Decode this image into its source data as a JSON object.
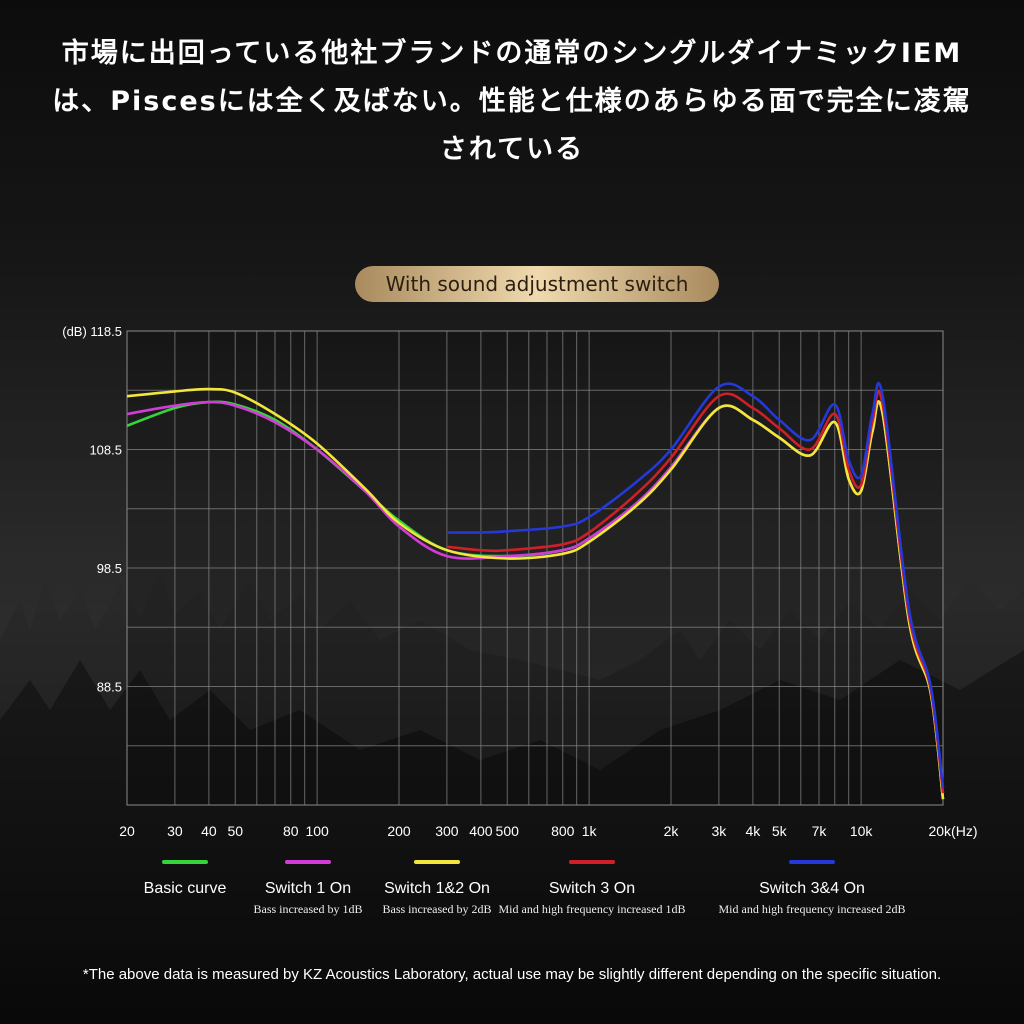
{
  "headline": "市場に出回っている他社ブランドの通常のシングルダイナミックIEMは、Piscesには全く及ばない。性能と仕様のあらゆる面で完全に凌駕されている",
  "badge": "With sound adjustment switch",
  "footnote": "*The above data is measured by KZ Acoustics Laboratory, actual use may be slightly different depending on the specific situation.",
  "legend": [
    {
      "name": "Basic curve",
      "note": "",
      "color": "#35d43a"
    },
    {
      "name": "Switch 1 On",
      "note": "Bass increased by 1dB",
      "color": "#d23cd6"
    },
    {
      "name": "Switch 1&2 On",
      "note": "Bass increased by 2dB",
      "color": "#f2e63a"
    },
    {
      "name": "Switch 3 On",
      "note": "Mid and high frequency increased 1dB",
      "color": "#d11f2a"
    },
    {
      "name": "Switch 3&4 On",
      "note": "Mid and high frequency increased 2dB",
      "color": "#2538d8"
    }
  ],
  "chart_data": {
    "type": "line",
    "title": "",
    "xlabel": "(Hz)",
    "ylabel": "(dB)",
    "x_scale": "log",
    "xlim": [
      20,
      20000
    ],
    "ylim": [
      78.5,
      118.5
    ],
    "yticks": [
      118.5,
      108.5,
      98.5,
      88.5
    ],
    "xticks": [
      {
        "v": 20,
        "label": "20"
      },
      {
        "v": 30,
        "label": "30"
      },
      {
        "v": 40,
        "label": "40"
      },
      {
        "v": 50,
        "label": "50"
      },
      {
        "v": 80,
        "label": "80"
      },
      {
        "v": 100,
        "label": "100"
      },
      {
        "v": 200,
        "label": "200"
      },
      {
        "v": 300,
        "label": "300"
      },
      {
        "v": 400,
        "label": "400"
      },
      {
        "v": 500,
        "label": "500"
      },
      {
        "v": 800,
        "label": "800"
      },
      {
        "v": 1000,
        "label": "1k"
      },
      {
        "v": 2000,
        "label": "2k"
      },
      {
        "v": 3000,
        "label": "3k"
      },
      {
        "v": 4000,
        "label": "4k"
      },
      {
        "v": 5000,
        "label": "5k"
      },
      {
        "v": 7000,
        "label": "7k"
      },
      {
        "v": 10000,
        "label": "10k"
      },
      {
        "v": 20000,
        "label": "20k"
      }
    ],
    "grid": true,
    "series": [
      {
        "name": "Basic curve",
        "color": "#35d43a",
        "x": [
          20,
          30,
          40,
          50,
          70,
          100,
          150,
          200,
          300,
          500,
          800,
          1000,
          1500,
          2000,
          3000,
          4000,
          5000,
          6500,
          8000,
          9000,
          10000,
          11000,
          12000,
          15000,
          18000,
          20000
        ],
        "y": [
          110.5,
          112,
          112.5,
          112.3,
          111,
          108.5,
          105,
          102.5,
          100,
          99.5,
          100,
          101,
          104,
          107,
          112,
          111,
          109.5,
          108,
          110.8,
          106,
          105,
          110,
          111.5,
          94,
          88,
          79
        ]
      },
      {
        "name": "Switch 1 On",
        "color": "#d23cd6",
        "x": [
          20,
          30,
          40,
          50,
          70,
          100,
          150,
          200,
          300,
          500,
          800,
          1000,
          1500,
          2000,
          3000,
          4000,
          5000,
          6500,
          8000,
          9000,
          10000,
          11000,
          12000,
          15000,
          18000,
          20000
        ],
        "y": [
          111.5,
          112.2,
          112.5,
          112.2,
          110.8,
          108.5,
          105,
          102,
          99.5,
          99.5,
          100,
          101,
          104,
          107,
          112,
          111,
          109.5,
          108,
          110.8,
          106,
          105,
          110,
          111.5,
          94,
          88,
          79
        ]
      },
      {
        "name": "Switch 1&2 On",
        "color": "#f2e63a",
        "x": [
          20,
          30,
          40,
          50,
          70,
          100,
          150,
          200,
          300,
          500,
          800,
          1000,
          1500,
          2000,
          3000,
          4000,
          5000,
          6500,
          8000,
          9000,
          10000,
          11000,
          12000,
          15000,
          18000,
          20000
        ],
        "y": [
          113,
          113.4,
          113.6,
          113.3,
          111.5,
          109,
          105.2,
          102.3,
          100,
          99.3,
          99.7,
          100.7,
          103.8,
          106.8,
          112,
          111,
          109.5,
          108,
          110.8,
          106,
          105,
          110,
          111.5,
          94,
          88,
          79
        ]
      },
      {
        "name": "Switch 3 On",
        "color": "#d11f2a",
        "x": [
          300,
          400,
          500,
          800,
          1000,
          1500,
          2000,
          3000,
          4000,
          5000,
          6500,
          8000,
          9000,
          10000,
          11000,
          12000,
          15000,
          18000,
          20000
        ],
        "y": [
          100.3,
          100,
          100,
          100.5,
          101.5,
          104.8,
          107.8,
          113,
          112,
          110.3,
          108.5,
          111.5,
          106.8,
          105.5,
          110.8,
          112.3,
          94.5,
          88.3,
          79.5
        ]
      },
      {
        "name": "Switch 3&4 On",
        "color": "#2538d8",
        "x": [
          300,
          400,
          500,
          800,
          1000,
          1500,
          2000,
          3000,
          4000,
          5000,
          6500,
          8000,
          9000,
          10000,
          11000,
          12000,
          15000,
          18000,
          20000
        ],
        "y": [
          101.5,
          101.5,
          101.6,
          102,
          102.8,
          105.8,
          108.5,
          113.8,
          113,
          111,
          109.3,
          112.3,
          107.6,
          106.3,
          111.5,
          113,
          95,
          88.6,
          80
        ]
      }
    ]
  }
}
